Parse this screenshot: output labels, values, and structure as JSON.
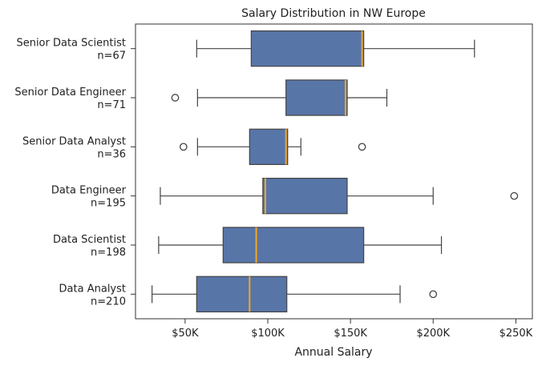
{
  "chart_data": {
    "type": "box",
    "orientation": "horizontal",
    "title": "Salary Distribution in NW Europe",
    "xlabel": "Annual Salary",
    "ylabel": "",
    "xlim": [
      20000,
      260000
    ],
    "xticks": [
      50000,
      100000,
      150000,
      200000,
      250000
    ],
    "xtick_labels": [
      "$50K",
      "$100K",
      "$150K",
      "$200K",
      "$250K"
    ],
    "grid": false,
    "box_color": "#5875a8",
    "median_color": "#f5a623",
    "line_color": "#444444",
    "categories": [
      {
        "name": "Senior Data Scientist",
        "n_label": "n=67",
        "whisker_low": 57000,
        "q1": 90000,
        "median": 157000,
        "q3": 158000,
        "whisker_high": 225000,
        "outliers": []
      },
      {
        "name": "Senior Data Engineer",
        "n_label": "n=71",
        "whisker_low": 57500,
        "q1": 111000,
        "median": 147000,
        "q3": 148000,
        "whisker_high": 172000,
        "outliers": [
          44000
        ]
      },
      {
        "name": "Senior Data Analyst",
        "n_label": "n=36",
        "whisker_low": 57500,
        "q1": 89000,
        "median": 111000,
        "q3": 112000,
        "whisker_high": 120000,
        "outliers": [
          49000,
          157000
        ]
      },
      {
        "name": "Data Engineer",
        "n_label": "n=195",
        "whisker_low": 35000,
        "q1": 97000,
        "median": 98500,
        "q3": 148000,
        "whisker_high": 200000,
        "outliers": [
          249000
        ]
      },
      {
        "name": "Data Scientist",
        "n_label": "n=198",
        "whisker_low": 34000,
        "q1": 73000,
        "median": 93000,
        "q3": 158000,
        "whisker_high": 205000,
        "outliers": []
      },
      {
        "name": "Data Analyst",
        "n_label": "n=210",
        "whisker_low": 30000,
        "q1": 57000,
        "median": 89000,
        "q3": 111500,
        "whisker_high": 180000,
        "outliers": [
          200000
        ]
      }
    ]
  }
}
